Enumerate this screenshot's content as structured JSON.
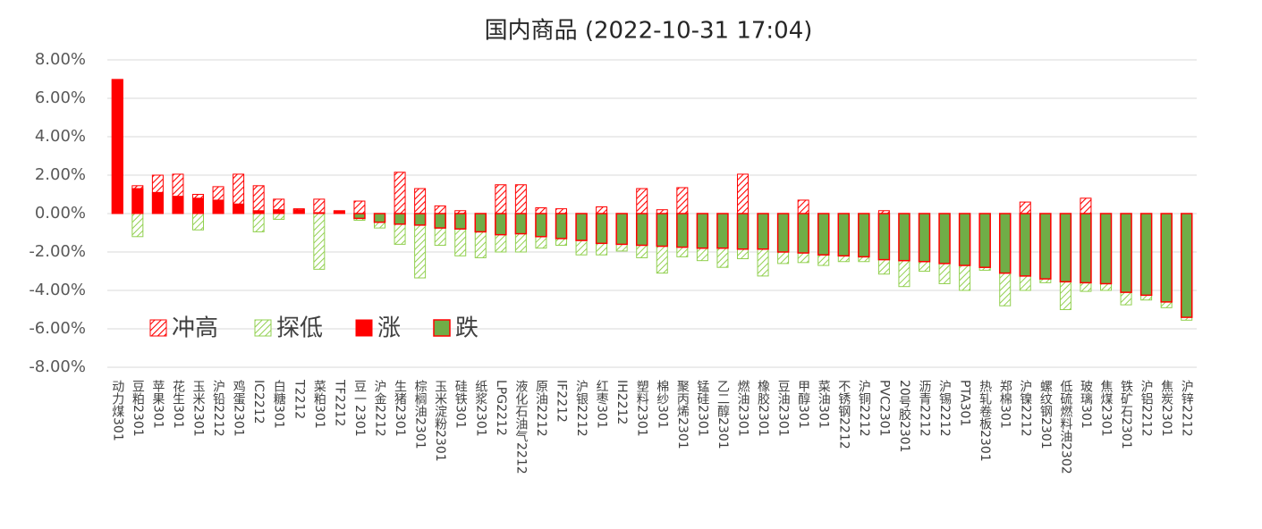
{
  "chart_data": {
    "type": "range-bar",
    "title": "国内商品 (2022-10-31 17:04)",
    "categories": [
      "动力煤301",
      "豆粕2301",
      "苹果301",
      "花生301",
      "玉米2301",
      "沪铅2212",
      "鸡蛋2301",
      "IC2212",
      "白糖301",
      "T2212",
      "菜粕301",
      "TF2212",
      "豆一2301",
      "沪金2212",
      "生猪2301",
      "棕榈油2301",
      "玉米淀粉2301",
      "硅铁301",
      "纸浆2301",
      "LPG2212",
      "液化石油气2212",
      "原油2212",
      "IF2212",
      "沪银2212",
      "红枣301",
      "IH2212",
      "塑料2301",
      "棉纱301",
      "聚丙烯2301",
      "锰硅2301",
      "乙二醇2301",
      "燃油2301",
      "橡胶2301",
      "豆油2301",
      "甲醇301",
      "菜油301",
      "不锈钢2212",
      "沪铜2212",
      "PVC2301",
      "20号胶2301",
      "沥青2212",
      "沪锡2212",
      "PTA301",
      "热轧卷板2301",
      "郑棉301",
      "沪镍2212",
      "螺纹钢2301",
      "低硫燃料油2302",
      "玻璃301",
      "焦煤2301",
      "铁矿石2301",
      "沪铝2212",
      "焦炭2301",
      "沪锌2212"
    ],
    "series": [
      {
        "name": "冲高",
        "color": "#ff0000",
        "values": [
          6.98,
          1.45,
          2.0,
          2.05,
          1.0,
          1.4,
          2.05,
          1.45,
          0.75,
          0.25,
          0.75,
          0.15,
          0.65,
          0,
          2.15,
          1.3,
          0.4,
          0.15,
          0,
          1.5,
          1.5,
          0.3,
          0.25,
          0,
          0.35,
          0,
          1.3,
          0.2,
          1.35,
          0,
          0,
          2.05,
          0,
          0,
          0.7,
          0,
          0,
          0,
          0.15,
          0,
          0,
          0,
          0,
          0,
          0,
          0.6,
          0,
          0,
          0.8,
          0,
          0,
          0,
          0,
          0
        ]
      },
      {
        "name": "探低",
        "color": "#92d050",
        "values": [
          0,
          -1.2,
          0,
          0,
          -0.85,
          0,
          0,
          -0.95,
          -0.3,
          0,
          -2.9,
          0,
          -0.35,
          -0.75,
          -1.6,
          -3.35,
          -1.65,
          -2.2,
          -2.3,
          -2.0,
          -2.0,
          -1.8,
          -1.65,
          -2.15,
          -2.15,
          -1.95,
          -2.3,
          -3.1,
          -2.25,
          -2.45,
          -2.8,
          -2.35,
          -3.25,
          -2.6,
          -2.55,
          -2.7,
          -2.5,
          -2.5,
          -3.15,
          -3.8,
          -3.0,
          -3.65,
          -4.0,
          -2.95,
          -4.8,
          -4.0,
          -3.6,
          -5.0,
          -4.05,
          -4.0,
          -4.75,
          -4.5,
          -4.9,
          -5.55
        ]
      },
      {
        "name": "涨",
        "color": "#ff0000",
        "values": [
          6.98,
          1.3,
          1.1,
          0.9,
          0.8,
          0.7,
          0.5,
          0.15,
          0.2,
          0.2,
          0.05,
          0.12,
          null,
          null,
          null,
          null,
          null,
          null,
          null,
          null,
          null,
          null,
          null,
          null,
          null,
          null,
          null,
          null,
          null,
          null,
          null,
          null,
          null,
          null,
          null,
          null,
          null,
          null,
          null,
          null,
          null,
          null,
          null,
          null,
          null,
          null,
          null,
          null,
          null,
          null,
          null,
          null,
          null,
          null
        ]
      },
      {
        "name": "跌",
        "color": "#70ad47",
        "values": [
          null,
          null,
          null,
          null,
          null,
          null,
          null,
          null,
          null,
          null,
          null,
          null,
          -0.25,
          -0.45,
          -0.55,
          -0.6,
          -0.75,
          -0.8,
          -0.95,
          -1.1,
          -1.05,
          -1.2,
          -1.3,
          -1.4,
          -1.55,
          -1.6,
          -1.65,
          -1.7,
          -1.75,
          -1.8,
          -1.8,
          -1.85,
          -1.85,
          -2.0,
          -2.05,
          -2.15,
          -2.2,
          -2.25,
          -2.4,
          -2.45,
          -2.5,
          -2.6,
          -2.7,
          -2.8,
          -3.1,
          -3.25,
          -3.4,
          -3.55,
          -3.6,
          -3.65,
          -4.1,
          -4.25,
          -4.6,
          -5.4
        ]
      }
    ],
    "ylim": [
      -8,
      8
    ],
    "yticks": [
      {
        "value": -8,
        "label": "-8.00%"
      },
      {
        "value": -6,
        "label": "-6.00%"
      },
      {
        "value": -4,
        "label": "-4.00%"
      },
      {
        "value": -2,
        "label": "-2.00%"
      },
      {
        "value": 0,
        "label": "0.00%"
      },
      {
        "value": 2,
        "label": "2.00%"
      },
      {
        "value": 4,
        "label": "4.00%"
      },
      {
        "value": 6,
        "label": "6.00%"
      },
      {
        "value": 8,
        "label": "8.00%"
      }
    ],
    "grid": true
  }
}
